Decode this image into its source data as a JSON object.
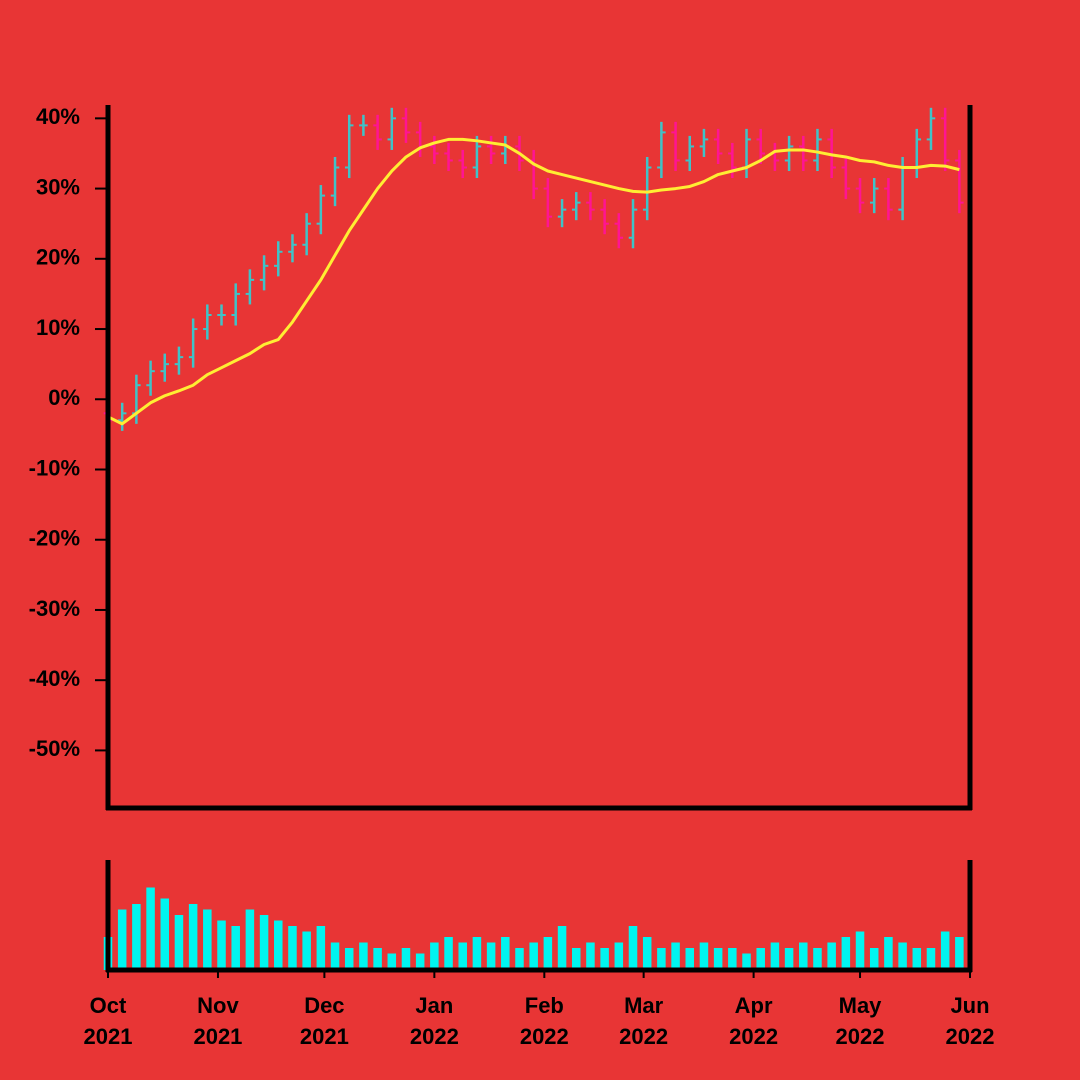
{
  "chart_data": {
    "type": "ohlc",
    "background": "#e83535",
    "up_color": "#3fc3c8",
    "down_color": "#ff1493",
    "ma_color": "#ffee33",
    "volume_color": "#00f5f0",
    "xlim": [
      "2021-10-01",
      "2022-06-01"
    ],
    "xticks": [
      {
        "value": "2021-10-01",
        "label": "Oct\n2021"
      },
      {
        "value": "2021-11-01",
        "label": "Nov\n2021"
      },
      {
        "value": "2021-12-01",
        "label": "Dec\n2021"
      },
      {
        "value": "2022-01-01",
        "label": "Jan\n2022"
      },
      {
        "value": "2022-02-01",
        "label": "Feb\n2022"
      },
      {
        "value": "2022-03-01",
        "label": "Mar\n2022"
      },
      {
        "value": "2022-04-01",
        "label": "Apr\n2022"
      },
      {
        "value": "2022-05-01",
        "label": "May\n2022"
      },
      {
        "value": "2022-06-01",
        "label": "Jun\n2022"
      }
    ],
    "ylim": [
      -58.2,
      41.9
    ],
    "yticks": [
      {
        "value": 40,
        "label": "40%"
      },
      {
        "value": 30,
        "label": "30%"
      },
      {
        "value": 20,
        "label": "20%"
      },
      {
        "value": 10,
        "label": "10%"
      },
      {
        "value": 0,
        "label": "0%"
      },
      {
        "value": -10,
        "label": "-10%"
      },
      {
        "value": -20,
        "label": "-20%"
      },
      {
        "value": -30,
        "label": "-30%"
      },
      {
        "value": -40,
        "label": "-40%"
      },
      {
        "value": -50,
        "label": "-50%"
      }
    ],
    "volume_ylim": [
      0,
      100
    ],
    "x": [
      "2021-10-01",
      "2021-10-05",
      "2021-10-09",
      "2021-10-13",
      "2021-10-17",
      "2021-10-21",
      "2021-10-25",
      "2021-10-29",
      "2021-11-02",
      "2021-11-06",
      "2021-11-10",
      "2021-11-14",
      "2021-11-18",
      "2021-11-22",
      "2021-11-26",
      "2021-11-30",
      "2021-12-04",
      "2021-12-08",
      "2021-12-12",
      "2021-12-16",
      "2021-12-20",
      "2021-12-24",
      "2021-12-28",
      "2022-01-01",
      "2022-01-05",
      "2022-01-09",
      "2022-01-13",
      "2022-01-17",
      "2022-01-21",
      "2022-01-25",
      "2022-01-29",
      "2022-02-02",
      "2022-02-06",
      "2022-02-10",
      "2022-02-14",
      "2022-02-18",
      "2022-02-22",
      "2022-02-26",
      "2022-03-02",
      "2022-03-06",
      "2022-03-10",
      "2022-03-14",
      "2022-03-18",
      "2022-03-22",
      "2022-03-26",
      "2022-03-30",
      "2022-04-03",
      "2022-04-07",
      "2022-04-11",
      "2022-04-15",
      "2022-04-19",
      "2022-04-23",
      "2022-04-27",
      "2022-05-01",
      "2022-05-05",
      "2022-05-09",
      "2022-05-13",
      "2022-05-17",
      "2022-05-21",
      "2022-05-25",
      "2022-05-29"
    ],
    "open": [
      -2,
      -3,
      -2,
      2,
      4,
      5,
      6,
      10,
      12,
      12,
      15,
      17,
      19,
      21,
      22,
      25,
      29,
      33,
      39,
      39,
      37,
      40,
      38,
      36,
      35,
      34,
      33,
      36,
      35,
      36,
      34,
      30,
      26,
      27,
      28,
      27,
      25,
      23,
      27,
      33,
      38,
      34,
      36,
      37,
      35,
      33,
      37,
      35,
      34,
      36,
      34,
      37,
      33,
      30,
      28,
      30,
      27,
      33,
      37,
      40,
      34
    ],
    "high": [
      -0.5,
      -0.5,
      3.5,
      5.5,
      6.5,
      7.5,
      11.5,
      13.5,
      13.5,
      16.5,
      18.5,
      20.5,
      22.5,
      23.5,
      26.5,
      30.5,
      34.5,
      40.5,
      40.5,
      40.5,
      41.5,
      41.5,
      39.5,
      37.5,
      36.5,
      35.5,
      37.5,
      37.5,
      37.5,
      37.5,
      35.5,
      31.5,
      28.5,
      29.5,
      29.5,
      28.5,
      26.5,
      28.5,
      34.5,
      39.5,
      39.5,
      37.5,
      38.5,
      38.5,
      36.5,
      38.5,
      38.5,
      36.5,
      37.5,
      37.5,
      38.5,
      38.5,
      34.5,
      31.5,
      31.5,
      31.5,
      34.5,
      38.5,
      41.5,
      41.5,
      35.5
    ],
    "low": [
      -4.5,
      -4.5,
      -3.5,
      0.5,
      2.5,
      3.5,
      4.5,
      8.5,
      10.5,
      10.5,
      13.5,
      15.5,
      17.5,
      19.5,
      20.5,
      23.5,
      27.5,
      31.5,
      37.5,
      35.5,
      35.5,
      36.5,
      34.5,
      33.5,
      32.5,
      31.5,
      31.5,
      33.5,
      33.5,
      32.5,
      28.5,
      24.5,
      24.5,
      25.5,
      25.5,
      23.5,
      21.5,
      21.5,
      25.5,
      31.5,
      32.5,
      32.5,
      34.5,
      33.5,
      31.5,
      31.5,
      33.5,
      32.5,
      32.5,
      32.5,
      32.5,
      31.5,
      28.5,
      26.5,
      26.5,
      25.5,
      25.5,
      31.5,
      35.5,
      32.5,
      26.5
    ],
    "close": [
      -3,
      -2,
      2,
      4,
      5,
      6,
      10,
      12,
      12,
      15,
      17,
      19,
      21,
      22,
      25,
      29,
      33,
      39,
      39,
      37,
      40,
      38,
      36,
      35,
      34,
      33,
      36,
      35,
      36,
      34,
      30,
      26,
      27,
      28,
      27,
      25,
      23,
      27,
      33,
      38,
      34,
      36,
      37,
      35,
      33,
      37,
      35,
      34,
      36,
      34,
      37,
      33,
      30,
      28,
      30,
      27,
      33,
      37,
      40,
      34,
      28
    ],
    "moving_average": [
      -2.5,
      -3.5,
      -2,
      -0.5,
      0.5,
      1.2,
      2,
      3.5,
      4.5,
      5.5,
      6.5,
      7.8,
      8.5,
      11,
      14,
      17,
      20.5,
      24,
      27,
      30,
      32.5,
      34.5,
      35.8,
      36.5,
      37,
      37,
      36.8,
      36.5,
      36.2,
      35,
      33.5,
      32.5,
      32,
      31.5,
      31,
      30.5,
      30,
      29.6,
      29.5,
      29.8,
      30,
      30.3,
      31,
      32,
      32.5,
      33,
      34,
      35.3,
      35.5,
      35.5,
      35.2,
      34.8,
      34.5,
      34,
      33.8,
      33.3,
      33,
      33,
      33.3,
      33.2,
      32.7
    ],
    "volume": [
      30,
      55,
      60,
      75,
      65,
      50,
      60,
      55,
      45,
      40,
      55,
      50,
      45,
      40,
      35,
      40,
      25,
      20,
      25,
      20,
      15,
      20,
      15,
      25,
      30,
      25,
      30,
      25,
      30,
      20,
      25,
      30,
      40,
      20,
      25,
      20,
      25,
      40,
      30,
      20,
      25,
      20,
      25,
      20,
      20,
      15,
      20,
      25,
      20,
      25,
      20,
      25,
      30,
      35,
      20,
      30,
      25,
      20,
      20,
      35,
      30
    ]
  }
}
